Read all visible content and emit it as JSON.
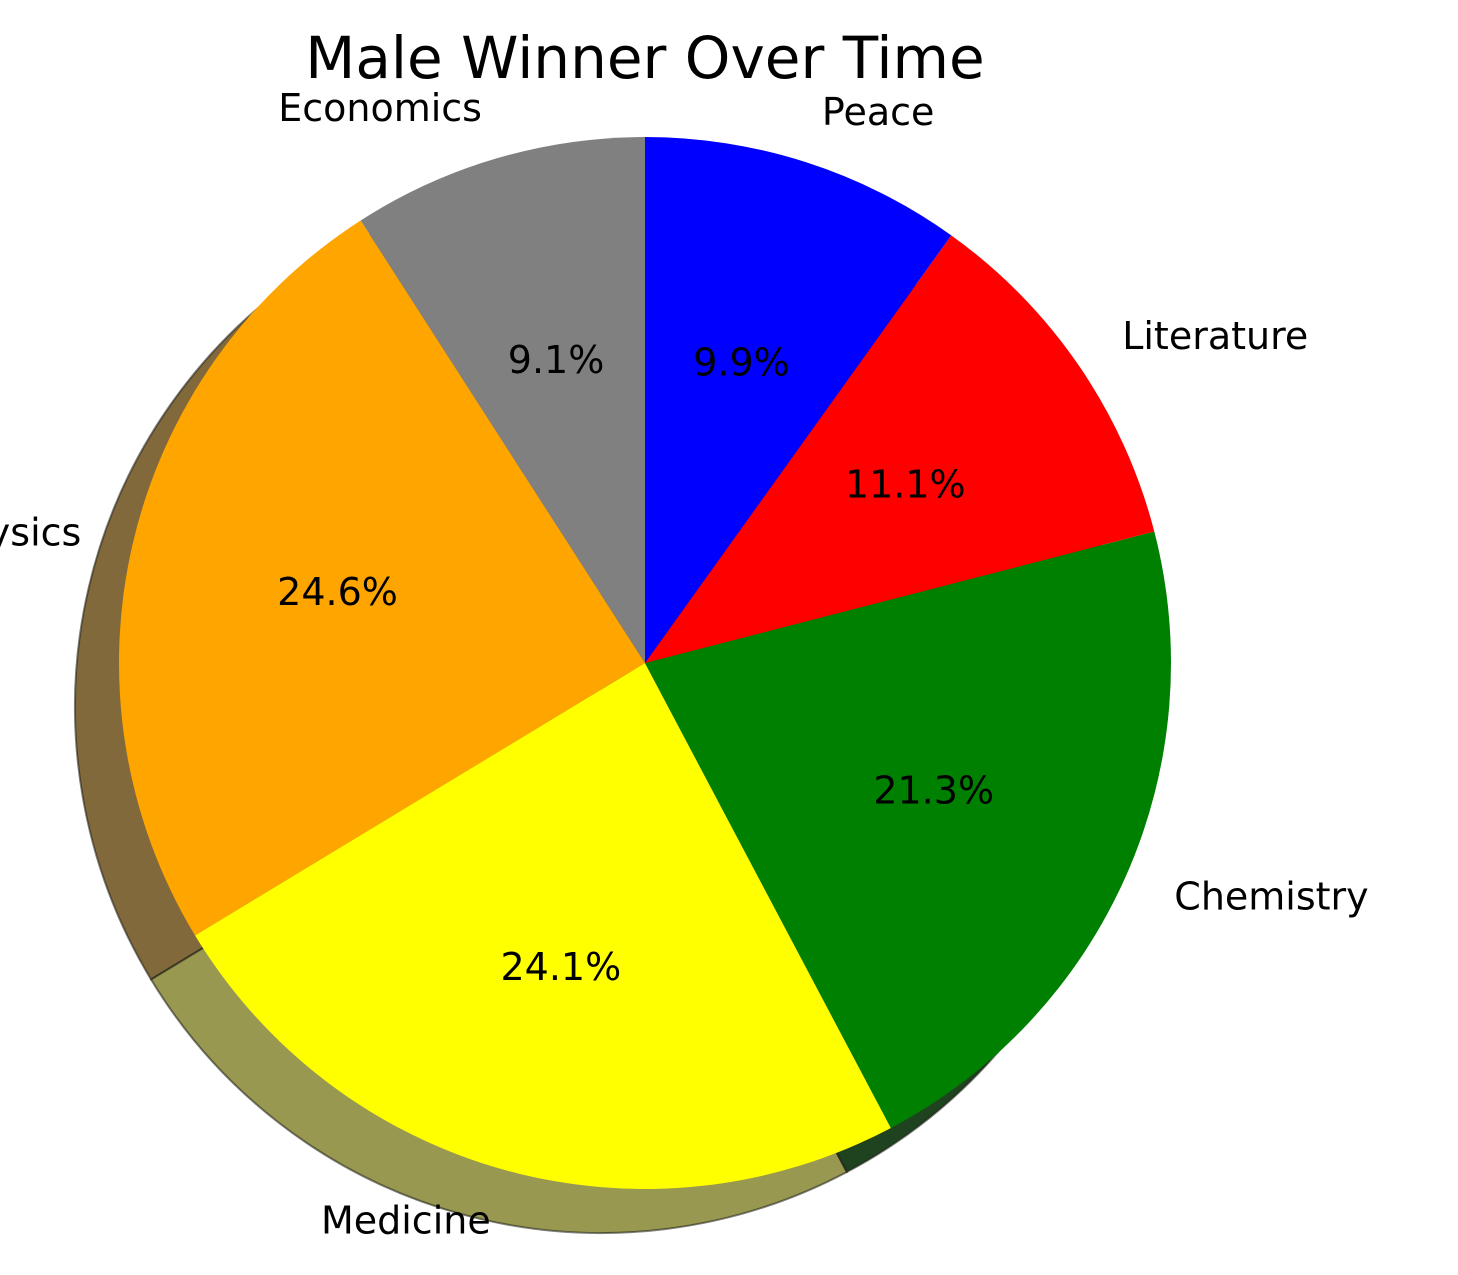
{
  "chart_data": {
    "type": "pie",
    "title": "Male Winner Over Time",
    "start_angle_deg": 90,
    "direction": "counterclockwise",
    "shadow": true,
    "slices": [
      {
        "label": "Economics",
        "value": 9.1,
        "pct_label": "9.1%",
        "color": "#808080"
      },
      {
        "label": "Physics",
        "value": 24.6,
        "pct_label": "24.6%",
        "color": "#FFA500"
      },
      {
        "label": "Medicine",
        "value": 24.1,
        "pct_label": "24.1%",
        "color": "#FFFF00"
      },
      {
        "label": "Chemistry",
        "value": 21.3,
        "pct_label": "21.3%",
        "color": "#008000"
      },
      {
        "label": "Literature",
        "value": 11.1,
        "pct_label": "11.1%",
        "color": "#FF0000"
      },
      {
        "label": "Peace",
        "value": 9.9,
        "pct_label": "9.9%",
        "color": "#0000FF"
      }
    ]
  }
}
